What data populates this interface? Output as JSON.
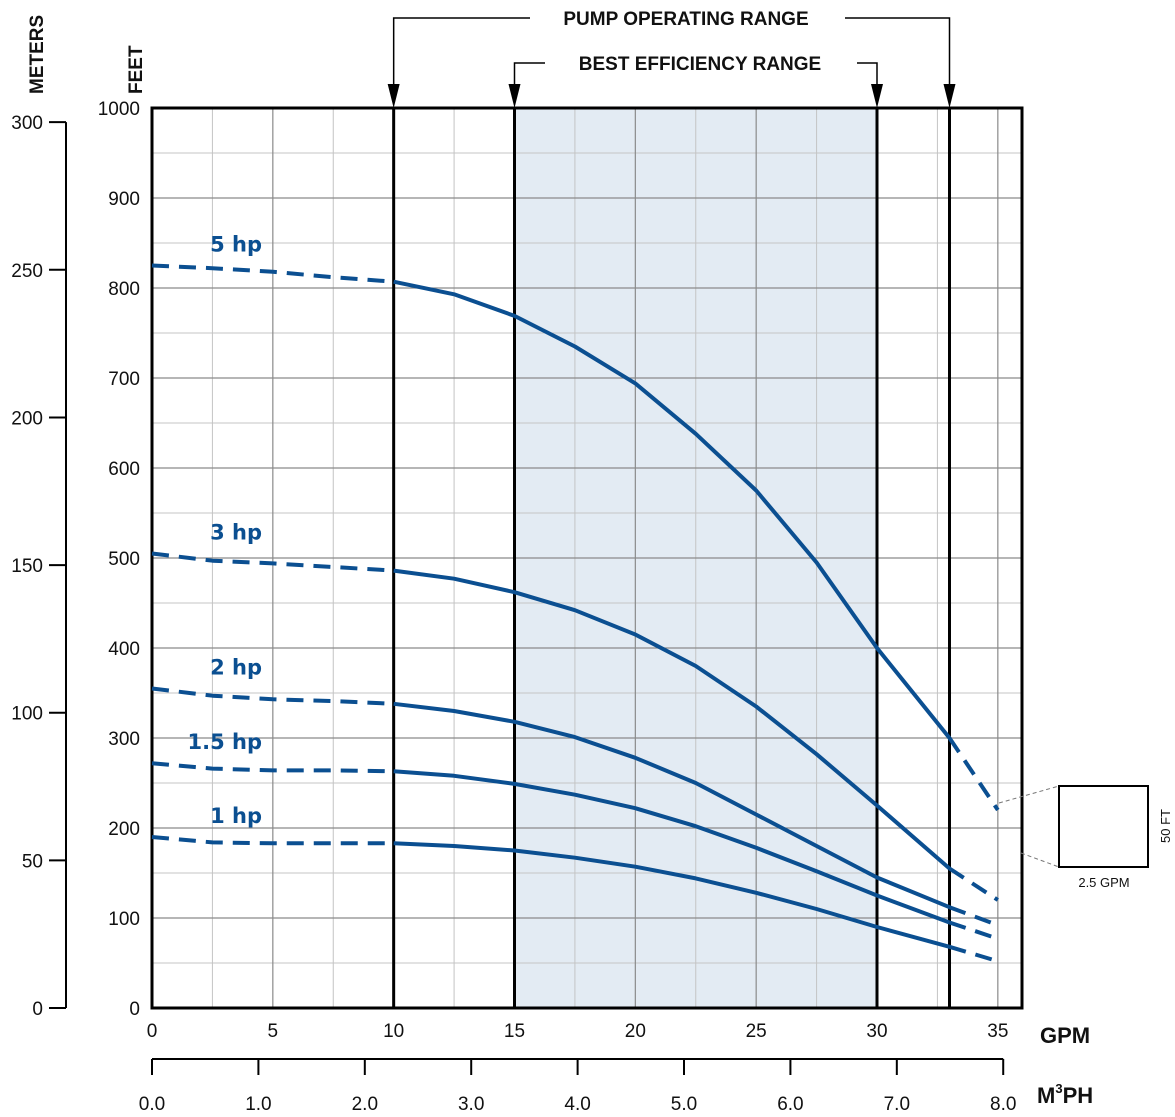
{
  "chart_data": {
    "type": "line",
    "axes": {
      "feet": {
        "label": "FEET",
        "ticks": [
          0,
          100,
          200,
          300,
          400,
          500,
          600,
          700,
          800,
          900,
          1000
        ],
        "ylim": [
          0,
          1000
        ]
      },
      "meters": {
        "label": "METERS",
        "ticks": [
          0,
          50,
          100,
          150,
          200,
          250,
          300
        ]
      },
      "gpm": {
        "label": "GPM",
        "ticks": [
          0,
          5,
          10,
          15,
          20,
          25,
          30,
          35
        ],
        "xlim": [
          0,
          36
        ]
      },
      "m3ph": {
        "label_main": "M",
        "label_sup": "3",
        "label_tail": "PH",
        "ticks": [
          "0.0",
          "1.0",
          "2.0",
          "3.0",
          "4.0",
          "5.0",
          "6.0",
          "7.0",
          "8.0"
        ]
      }
    },
    "ranges": {
      "pump_operating": {
        "label": "PUMP OPERATING RANGE",
        "from": 10,
        "to": 33
      },
      "best_efficiency": {
        "label": "BEST EFFICIENCY RANGE",
        "from": 15,
        "to": 30
      }
    },
    "series": [
      {
        "name": "5 hp",
        "x": [
          0,
          2.5,
          5,
          7.5,
          10,
          12.5,
          15,
          17.5,
          20,
          22.5,
          25,
          27.5,
          30,
          33,
          35
        ],
        "y": [
          825,
          822,
          818,
          812,
          807,
          793,
          769,
          735,
          694,
          638,
          575,
          495,
          400,
          300,
          220
        ],
        "solid_from": 10,
        "solid_to": 33
      },
      {
        "name": "3 hp",
        "x": [
          0,
          2.5,
          5,
          7.5,
          10,
          12.5,
          15,
          17.5,
          20,
          22.5,
          25,
          27.5,
          30,
          33,
          35
        ],
        "y": [
          505,
          497,
          494,
          490,
          486,
          477,
          462,
          442,
          415,
          380,
          335,
          282,
          225,
          155,
          120
        ],
        "solid_from": 10,
        "solid_to": 33
      },
      {
        "name": "2 hp",
        "x": [
          0,
          2.5,
          5,
          7.5,
          10,
          12.5,
          15,
          17.5,
          20,
          22.5,
          25,
          27.5,
          30,
          33,
          35
        ],
        "y": [
          355,
          347,
          343,
          341,
          338,
          330,
          318,
          301,
          278,
          250,
          215,
          180,
          145,
          112,
          92
        ],
        "solid_from": 10,
        "solid_to": 33
      },
      {
        "name": "1.5 hp",
        "x": [
          0,
          2.5,
          5,
          7.5,
          10,
          12.5,
          15,
          17.5,
          20,
          22.5,
          25,
          27.5,
          30,
          33,
          35
        ],
        "y": [
          272,
          266,
          264,
          264,
          263,
          258,
          249,
          237,
          222,
          202,
          178,
          152,
          125,
          95,
          77
        ],
        "solid_from": 10,
        "solid_to": 33
      },
      {
        "name": "1 hp",
        "x": [
          0,
          2.5,
          5,
          7.5,
          10,
          12.5,
          15,
          17.5,
          20,
          22.5,
          25,
          27.5,
          30,
          33,
          35
        ],
        "y": [
          190,
          184,
          183,
          183,
          183,
          180,
          175,
          167,
          157,
          144,
          128,
          110,
          90,
          68,
          52
        ],
        "solid_from": 10,
        "solid_to": 33
      }
    ],
    "scale_box": {
      "width_label": "2.5 GPM",
      "height_label": "50 FT"
    },
    "grid": true,
    "colors": {
      "curve": "#0b4f91",
      "efficiency_fill": "#e3ebf3",
      "grid": "#b5b5b5"
    }
  }
}
